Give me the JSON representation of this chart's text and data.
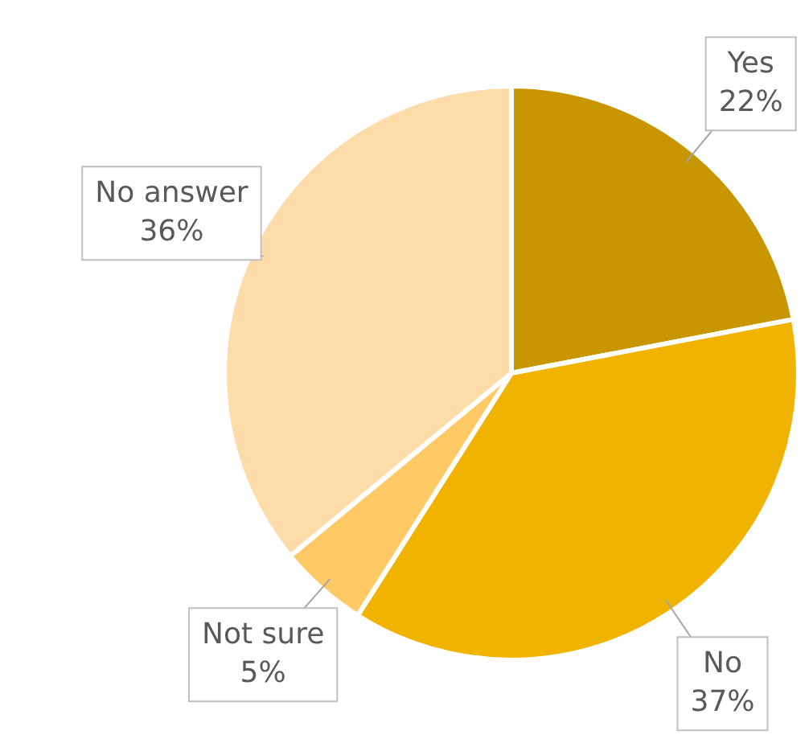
{
  "chart_data": {
    "type": "pie",
    "categories": [
      "Yes",
      "No",
      "Not sure",
      "No answer"
    ],
    "values": [
      22,
      37,
      5,
      36
    ],
    "value_labels": [
      "22%",
      "37%",
      "5%",
      "36%"
    ],
    "colors": [
      "#c89600",
      "#f0b400",
      "#ffc966",
      "#fddcaa"
    ],
    "legend": false
  }
}
